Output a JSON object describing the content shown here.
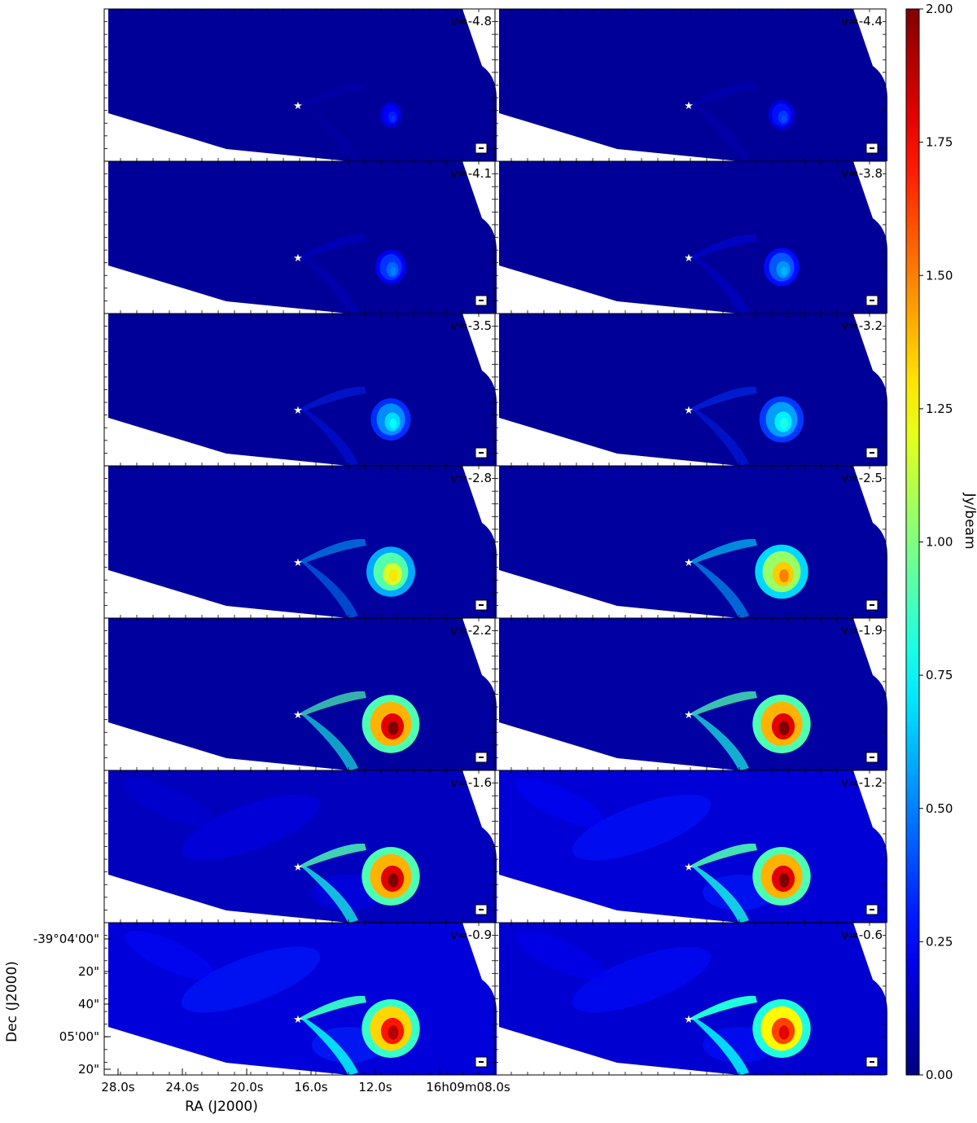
{
  "chart_data": {
    "type": "heatmap",
    "title": "",
    "panel_grid": {
      "rows": 7,
      "cols": 2
    },
    "panels": [
      {
        "label": "v=-4.8",
        "velocity": -4.8
      },
      {
        "label": "v=-4.4",
        "velocity": -4.4
      },
      {
        "label": "v=-4.1",
        "velocity": -4.1
      },
      {
        "label": "v=-3.8",
        "velocity": -3.8
      },
      {
        "label": "v=-3.5",
        "velocity": -3.5
      },
      {
        "label": "v=-3.2",
        "velocity": -3.2
      },
      {
        "label": "v=-2.8",
        "velocity": -2.8
      },
      {
        "label": "v=-2.5",
        "velocity": -2.5
      },
      {
        "label": "v=-2.2",
        "velocity": -2.2
      },
      {
        "label": "v=-1.9",
        "velocity": -1.9
      },
      {
        "label": "v=-1.6",
        "velocity": -1.6
      },
      {
        "label": "v=-1.2",
        "velocity": -1.2
      },
      {
        "label": "v=-0.9",
        "velocity": -0.9
      },
      {
        "label": "v=-0.6",
        "velocity": -0.6
      }
    ],
    "xlabel": "RA (J2000)",
    "ylabel": "Dec (J2000)",
    "x_tick_labels": [
      "28.0s",
      "24.0s",
      "20.0s",
      "16.0s",
      "12.0s",
      "16h09m08.0s"
    ],
    "y_tick_labels": [
      "-39°04'00\"",
      "20\"",
      "40\"",
      "05'00\"",
      "20\""
    ],
    "colorbar": {
      "label": "Jy/beam",
      "colormap": "jet",
      "range": [
        0,
        2.0
      ],
      "tick_values": [
        0.0,
        0.25,
        0.5,
        0.75,
        1.0,
        1.25,
        1.5,
        1.75,
        2.0
      ],
      "tick_labels": [
        "0.00",
        "0.25",
        "0.50",
        "0.75",
        "1.00",
        "1.25",
        "1.50",
        "1.75",
        "2.00"
      ]
    },
    "markers": {
      "source_symbol": "★",
      "beam_symbol": "beam"
    },
    "emission_peak_jy_beam": [
      0.35,
      0.4,
      0.5,
      0.6,
      0.75,
      0.8,
      1.3,
      1.5,
      2.0,
      2.0,
      2.0,
      2.0,
      1.9,
      1.8
    ],
    "background_level_jy_beam": [
      0.05,
      0.05,
      0.05,
      0.05,
      0.05,
      0.05,
      0.06,
      0.06,
      0.06,
      0.07,
      0.12,
      0.17,
      0.18,
      0.16
    ],
    "colors": {
      "outside_map": "#ffffff"
    }
  }
}
